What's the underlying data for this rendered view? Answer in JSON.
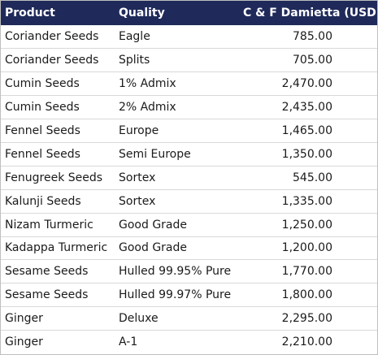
{
  "table": {
    "headers": [
      "Product",
      "Quality",
      "C & F Damietta (USD)"
    ],
    "rows": [
      {
        "product": "Coriander Seeds",
        "quality": "Eagle",
        "price": "785.00"
      },
      {
        "product": "Coriander Seeds",
        "quality": "Splits",
        "price": "705.00"
      },
      {
        "product": "Cumin Seeds",
        "quality": "1% Admix",
        "price": "2,470.00"
      },
      {
        "product": "Cumin Seeds",
        "quality": "2% Admix",
        "price": "2,435.00"
      },
      {
        "product": "Fennel Seeds",
        "quality": "Europe",
        "price": "1,465.00"
      },
      {
        "product": "Fennel Seeds",
        "quality": "Semi Europe",
        "price": "1,350.00"
      },
      {
        "product": "Fenugreek Seeds",
        "quality": "Sortex",
        "price": "545.00"
      },
      {
        "product": "Kalunji Seeds",
        "quality": "Sortex",
        "price": "1,335.00"
      },
      {
        "product": "Nizam Turmeric",
        "quality": "Good Grade",
        "price": "1,250.00"
      },
      {
        "product": "Kadappa Turmeric",
        "quality": "Good Grade",
        "price": "1,200.00"
      },
      {
        "product": "Sesame Seeds",
        "quality": "Hulled 99.95% Pure",
        "price": "1,770.00"
      },
      {
        "product": "Sesame Seeds",
        "quality": "Hulled 99.97% Pure",
        "price": "1,800.00"
      },
      {
        "product": "Ginger",
        "quality": "Deluxe",
        "price": "2,295.00"
      },
      {
        "product": "Ginger",
        "quality": "A-1",
        "price": "2,210.00"
      }
    ]
  },
  "colors": {
    "header_bg": "#1f2a5a",
    "header_text": "#ffffff"
  }
}
